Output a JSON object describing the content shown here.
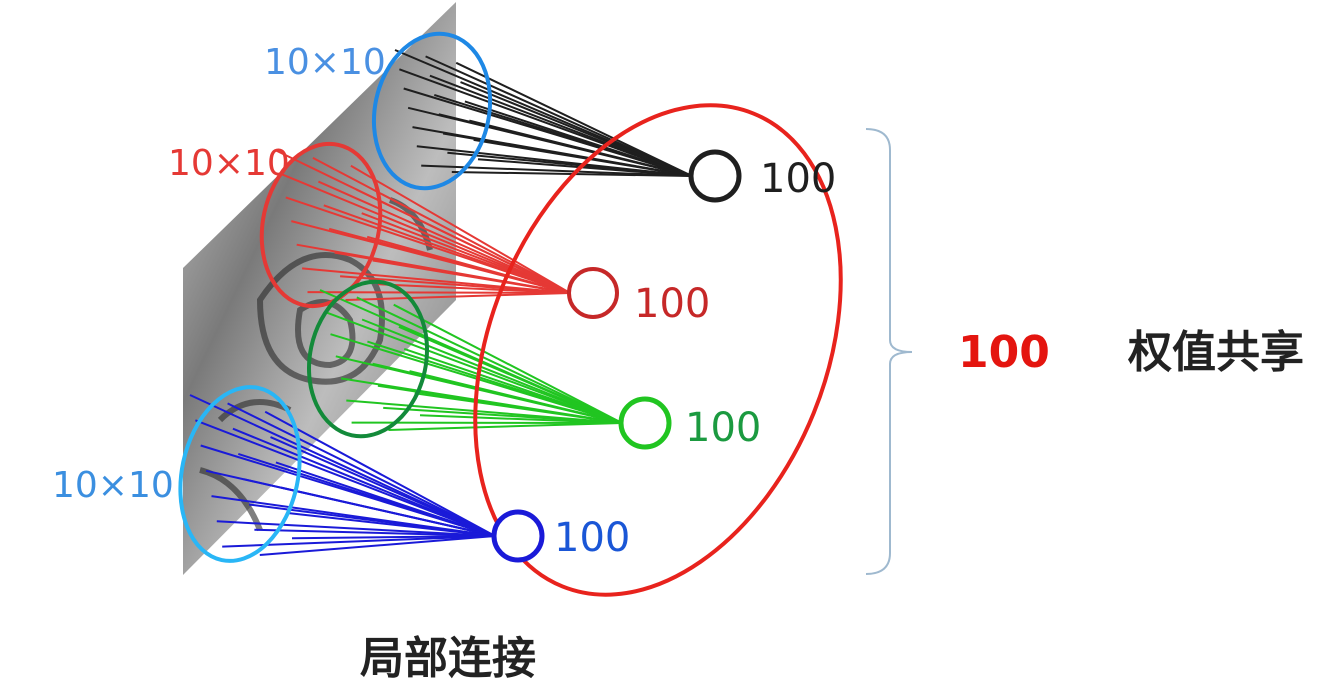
{
  "groups": [
    {
      "patch_label": "10×10",
      "node_label": "100",
      "color": "#1f1f1f",
      "patch_color": "#1e88e5",
      "label_color": "#4a90e2"
    },
    {
      "patch_label": "10×10",
      "node_label": "100",
      "color": "#e53935",
      "patch_color": "#e53935",
      "label_color": "#e53935"
    },
    {
      "patch_label": "",
      "node_label": "100",
      "color": "#21c521",
      "patch_color": "#138a3a",
      "label_color": "#1b9a40"
    },
    {
      "patch_label": "10×10",
      "node_label": "100",
      "color": "#1a1ad8",
      "patch_color": "#29b6f6",
      "label_color": "#3b8fe0"
    }
  ],
  "shared": {
    "value": "100",
    "value_color": "#e4150f",
    "label": "权值共享",
    "label_color": "#222222",
    "ellipse_color": "#e8231d",
    "bracket_color": "#9fb9cf"
  },
  "caption": "局部连接",
  "image_color": "#555555"
}
